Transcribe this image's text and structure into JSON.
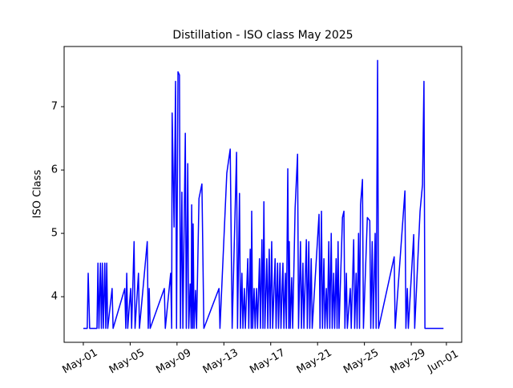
{
  "chart_data": {
    "type": "line",
    "title": "Distillation - ISO class May 2025",
    "ylabel": "ISO Class",
    "color": "#0000ff",
    "x": [
      "2025-05-01T00:00",
      "2025-05-01T08:00",
      "2025-05-01T10:00",
      "2025-05-01T13:00",
      "2025-05-02T04:00",
      "2025-05-02T06:00",
      "2025-05-02T08:00",
      "2025-05-02T11:00",
      "2025-05-02T13:00",
      "2025-05-02T15:00",
      "2025-05-02T17:00",
      "2025-05-02T20:00",
      "2025-05-02T22:00",
      "2025-05-03T00:00",
      "2025-05-03T02:00",
      "2025-05-03T11:00",
      "2025-05-03T13:00",
      "2025-05-04T13:00",
      "2025-05-04T15:00",
      "2025-05-04T17:00",
      "2025-05-04T19:00",
      "2025-05-05T01:00",
      "2025-05-05T03:00",
      "2025-05-05T08:00",
      "2025-05-05T10:00",
      "2025-05-05T17:00",
      "2025-05-05T19:00",
      "2025-05-06T11:00",
      "2025-05-06T13:00",
      "2025-05-06T15:00",
      "2025-05-06T17:00",
      "2025-05-07T22:00",
      "2025-05-08T00:00",
      "2025-05-08T11:00",
      "2025-05-08T13:00",
      "2025-05-08T14:00",
      "2025-05-08T18:00",
      "2025-05-08T21:00",
      "2025-05-08T23:00",
      "2025-05-09T02:00",
      "2025-05-09T05:00",
      "2025-05-09T07:00",
      "2025-05-09T10:00",
      "2025-05-09T12:00",
      "2025-05-09T17:00",
      "2025-05-09T19:00",
      "2025-05-09T22:00",
      "2025-05-10T00:00",
      "2025-05-10T03:00",
      "2025-05-10T05:00",
      "2025-05-10T06:00",
      "2025-05-10T08:00",
      "2025-05-10T09:00",
      "2025-05-10T11:00",
      "2025-05-10T14:00",
      "2025-05-10T16:00",
      "2025-05-10T21:00",
      "2025-05-11T03:00",
      "2025-05-11T07:00",
      "2025-05-12T14:00",
      "2025-05-12T16:00",
      "2025-05-13T06:00",
      "2025-05-13T13:00",
      "2025-05-13T17:00",
      "2025-05-14T02:00",
      "2025-05-14T04:00",
      "2025-05-14T08:00",
      "2025-05-14T10:00",
      "2025-05-14T13:00",
      "2025-05-14T15:00",
      "2025-05-14T18:00",
      "2025-05-14T20:00",
      "2025-05-15T01:00",
      "2025-05-15T03:00",
      "2025-05-15T06:00",
      "2025-05-15T08:00",
      "2025-05-15T09:00",
      "2025-05-15T11:00",
      "2025-05-15T14:00",
      "2025-05-15T16:00",
      "2025-05-15T19:00",
      "2025-05-15T21:00",
      "2025-05-16T01:00",
      "2025-05-16T03:00",
      "2025-05-16T06:00",
      "2025-05-16T08:00",
      "2025-05-16T10:00",
      "2025-05-16T12:00",
      "2025-05-16T16:00",
      "2025-05-16T18:00",
      "2025-05-16T21:00",
      "2025-05-16T23:00",
      "2025-05-17T02:00",
      "2025-05-17T04:00",
      "2025-05-17T09:00",
      "2025-05-17T11:00",
      "2025-05-17T14:00",
      "2025-05-17T16:00",
      "2025-05-17T19:00",
      "2025-05-17T21:00",
      "2025-05-18T01:00",
      "2025-05-18T03:00",
      "2025-05-18T06:00",
      "2025-05-18T08:00",
      "2025-05-18T11:00",
      "2025-05-18T13:00",
      "2025-05-18T14:00",
      "2025-05-18T16:00",
      "2025-05-18T19:00",
      "2025-05-18T21:00",
      "2025-05-19T02:00",
      "2025-05-19T07:00",
      "2025-05-19T09:00",
      "2025-05-19T13:00",
      "2025-05-19T15:00",
      "2025-05-19T18:00",
      "2025-05-19T20:00",
      "2025-05-20T01:00",
      "2025-05-20T03:00",
      "2025-05-20T06:00",
      "2025-05-20T08:00",
      "2025-05-20T11:00",
      "2025-05-20T13:00",
      "2025-05-21T03:00",
      "2025-05-21T05:00",
      "2025-05-21T08:00",
      "2025-05-21T10:00",
      "2025-05-21T13:00",
      "2025-05-21T15:00",
      "2025-05-21T18:00",
      "2025-05-21T20:00",
      "2025-05-21T23:00",
      "2025-05-22T01:00",
      "2025-05-22T04:00",
      "2025-05-22T06:00",
      "2025-05-22T09:00",
      "2025-05-22T11:00",
      "2025-05-22T14:00",
      "2025-05-22T16:00",
      "2025-05-22T18:00",
      "2025-05-22T20:00",
      "2025-05-23T03:00",
      "2025-05-23T06:00",
      "2025-05-23T08:00",
      "2025-05-23T11:00",
      "2025-05-23T13:00",
      "2025-05-23T19:00",
      "2025-05-23T21:00",
      "2025-05-24T02:00",
      "2025-05-24T04:00",
      "2025-05-24T07:00",
      "2025-05-24T09:00",
      "2025-05-24T12:00",
      "2025-05-24T14:00",
      "2025-05-24T16:00",
      "2025-05-24T20:00",
      "2025-05-24T22:00",
      "2025-05-25T06:00",
      "2025-05-25T11:00",
      "2025-05-25T13:00",
      "2025-05-25T16:00",
      "2025-05-25T18:00",
      "2025-05-25T22:00",
      "2025-05-26T00:00",
      "2025-05-26T03:00",
      "2025-05-26T05:00",
      "2025-05-27T13:00",
      "2025-05-27T15:00",
      "2025-05-28T11:00",
      "2025-05-28T13:00",
      "2025-05-28T16:00",
      "2025-05-28T18:00",
      "2025-05-29T05:00",
      "2025-05-29T07:00",
      "2025-05-29T18:00",
      "2025-05-29T23:00",
      "2025-05-30T02:00",
      "2025-05-30T04:00",
      "2025-05-31T18:00"
    ],
    "values": [
      3.5,
      3.5,
      4.37,
      3.5,
      3.5,
      4.53,
      3.5,
      4.53,
      3.5,
      4.53,
      3.5,
      4.53,
      3.5,
      4.53,
      3.5,
      4.13,
      3.5,
      4.13,
      3.5,
      4.37,
      3.5,
      4.13,
      3.5,
      4.87,
      3.5,
      4.37,
      3.5,
      4.87,
      3.5,
      4.13,
      3.5,
      4.13,
      3.5,
      4.37,
      3.5,
      6.9,
      5.1,
      7.4,
      3.5,
      7.55,
      7.5,
      3.5,
      5.65,
      3.5,
      6.58,
      3.5,
      6.1,
      3.5,
      4.2,
      3.5,
      5.45,
      3.5,
      5.15,
      3.5,
      4.1,
      3.5,
      5.55,
      5.78,
      3.5,
      4.13,
      3.5,
      5.95,
      6.33,
      3.5,
      6.28,
      3.5,
      5.63,
      3.5,
      4.37,
      3.5,
      4.13,
      3.5,
      4.6,
      3.5,
      4.75,
      3.5,
      5.35,
      3.5,
      4.13,
      3.5,
      4.13,
      3.5,
      4.6,
      3.5,
      4.9,
      3.5,
      5.5,
      3.5,
      4.6,
      3.5,
      4.75,
      3.5,
      4.87,
      3.5,
      4.6,
      3.5,
      4.53,
      3.5,
      4.53,
      3.5,
      4.53,
      3.5,
      4.37,
      3.5,
      6.02,
      3.5,
      4.87,
      3.5,
      4.3,
      3.5,
      5.4,
      6.25,
      3.5,
      4.87,
      3.5,
      4.53,
      3.5,
      4.9,
      3.5,
      4.87,
      3.5,
      4.6,
      3.5,
      5.3,
      3.5,
      5.35,
      3.5,
      4.6,
      3.5,
      4.13,
      3.5,
      4.87,
      3.5,
      5.0,
      3.5,
      4.37,
      3.5,
      4.6,
      3.5,
      4.87,
      3.5,
      5.25,
      5.35,
      3.5,
      4.37,
      3.5,
      4.13,
      3.5,
      4.9,
      3.5,
      4.37,
      3.5,
      5.0,
      3.5,
      5.45,
      5.85,
      3.5,
      5.25,
      5.2,
      3.5,
      4.87,
      3.5,
      5.0,
      3.5,
      7.73,
      3.5,
      4.63,
      3.5,
      5.67,
      3.5,
      4.13,
      3.5,
      4.98,
      3.5,
      5.35,
      5.77,
      7.4,
      3.5,
      3.5
    ],
    "xlim": [
      "2025-04-29T08:40",
      "2025-06-02T07:20"
    ],
    "xticks": [
      {
        "value": "2025-05-01T00:00",
        "label": "May-01"
      },
      {
        "value": "2025-05-05T00:00",
        "label": "May-05"
      },
      {
        "value": "2025-05-09T00:00",
        "label": "May-09"
      },
      {
        "value": "2025-05-13T00:00",
        "label": "May-13"
      },
      {
        "value": "2025-05-17T00:00",
        "label": "May-17"
      },
      {
        "value": "2025-05-21T00:00",
        "label": "May-21"
      },
      {
        "value": "2025-05-25T00:00",
        "label": "May-25"
      },
      {
        "value": "2025-05-29T00:00",
        "label": "May-29"
      },
      {
        "value": "2025-06-01T00:00",
        "label": "Jun-01"
      }
    ],
    "ylim": [
      3.28,
      7.95
    ],
    "yticks": [
      4,
      5,
      6,
      7
    ]
  }
}
